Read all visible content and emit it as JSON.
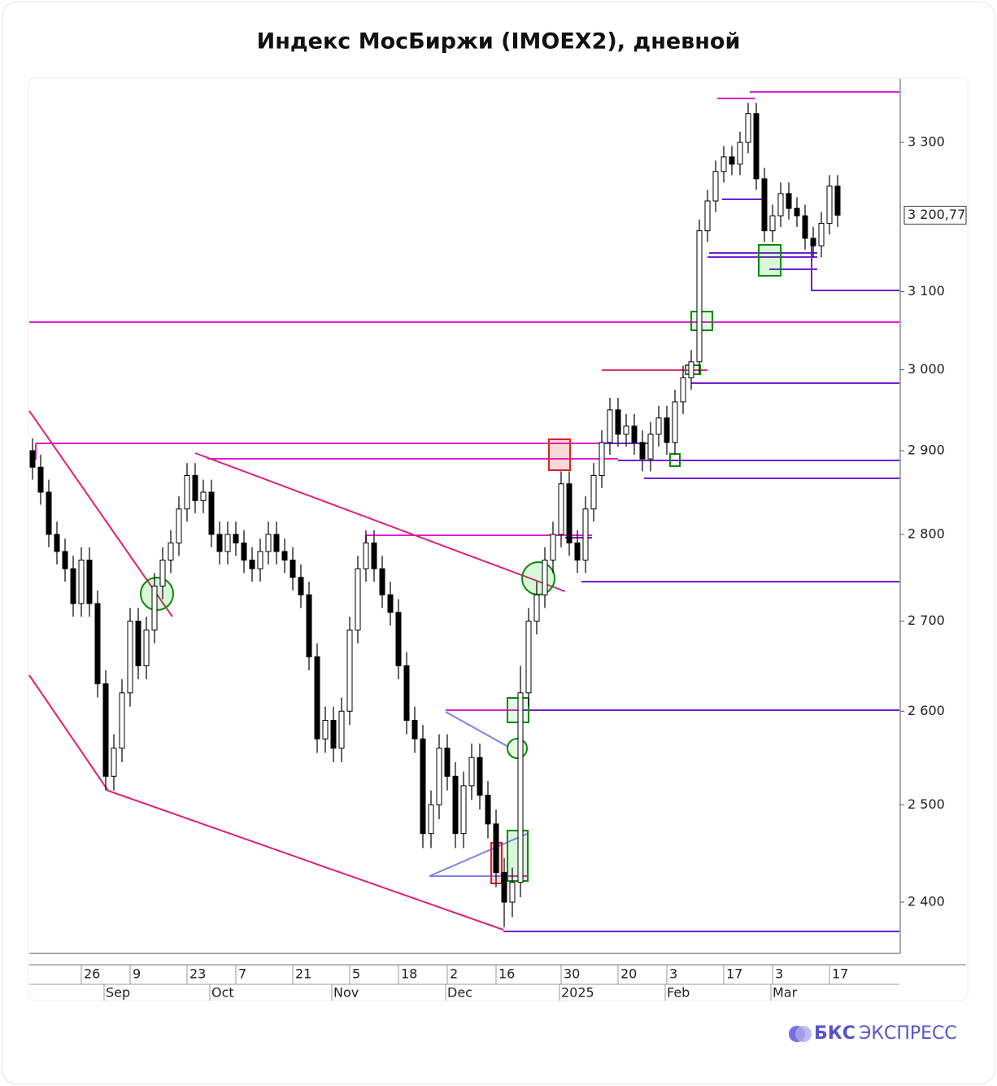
{
  "chart_data": {
    "type": "candlestick",
    "title": "Индекс МосБиржи (IMOEX2), дневной",
    "categories": [
      null,
      null,
      null,
      null,
      null,
      null,
      "26",
      null,
      null,
      null,
      null,
      null,
      "9",
      null,
      null,
      null,
      null,
      null,
      null,
      "23",
      null,
      null,
      null,
      null,
      null,
      "7",
      null,
      null,
      null,
      null,
      null,
      null,
      "21",
      null,
      null,
      null,
      null,
      null,
      null,
      "5",
      null,
      null,
      null,
      null,
      null,
      "18",
      null,
      null,
      null,
      null,
      null,
      "2",
      null,
      null,
      null,
      null,
      null,
      "16",
      null,
      null,
      null,
      null,
      null,
      null,
      null,
      "30",
      null,
      null,
      null,
      null,
      null,
      null,
      "20",
      null,
      null,
      null,
      null,
      null,
      "3",
      null,
      null,
      null,
      null,
      null,
      null,
      "17",
      null,
      null,
      null,
      null,
      null,
      "3",
      null,
      null,
      null,
      null,
      null,
      null,
      "17",
      null
    ],
    "month_categories": [
      null,
      null,
      null,
      null,
      null,
      null,
      null,
      null,
      null,
      "Sep",
      null,
      null,
      null,
      null,
      null,
      null,
      null,
      null,
      null,
      null,
      null,
      null,
      "Oct",
      null,
      null,
      null,
      null,
      null,
      null,
      null,
      null,
      null,
      null,
      null,
      null,
      null,
      null,
      "Nov",
      null,
      null,
      null,
      null,
      null,
      null,
      null,
      null,
      null,
      null,
      null,
      null,
      null,
      "Dec",
      null,
      null,
      null,
      null,
      null,
      null,
      null,
      null,
      null,
      null,
      null,
      null,
      null,
      "2025",
      null,
      null,
      null,
      null,
      null,
      null,
      null,
      null,
      null,
      null,
      null,
      null,
      "Feb",
      null,
      null,
      null,
      null,
      null,
      null,
      null,
      null,
      null,
      null,
      null,
      null,
      "Mar",
      null,
      null,
      null,
      null,
      null,
      null,
      null,
      null
    ],
    "open": [
      2900,
      2880,
      2850,
      2800,
      2780,
      2760,
      2720,
      2770,
      2720,
      2630,
      2530,
      2560,
      2620,
      2700,
      2650,
      2690,
      2740,
      2770,
      2790,
      2830,
      2870,
      2840,
      2850,
      2800,
      2780,
      2800,
      2790,
      2770,
      2760,
      2780,
      2800,
      2780,
      2770,
      2750,
      2730,
      2660,
      2570,
      2590,
      2560,
      2600,
      2690,
      2760,
      2790,
      2760,
      2730,
      2710,
      2650,
      2590,
      2570,
      2470,
      2500,
      2560,
      2530,
      2470,
      2520,
      2550,
      2510,
      2480,
      2430,
      2400,
      2420,
      2620,
      2700,
      2730,
      2770,
      2800,
      2860,
      2790,
      2770,
      2830,
      2870,
      2910,
      2950,
      2920,
      2930,
      2910,
      2890,
      2920,
      2940,
      2910,
      2960,
      2990,
      3010,
      3180,
      3220,
      3260,
      3280,
      3270,
      3300,
      3340,
      3250,
      3180,
      3200,
      3230,
      3210,
      3200,
      3170,
      3160,
      3190,
      3240
    ],
    "high": [
      2915,
      2895,
      2865,
      2815,
      2795,
      2775,
      2785,
      2785,
      2735,
      2645,
      2575,
      2635,
      2715,
      2715,
      2705,
      2755,
      2785,
      2805,
      2845,
      2885,
      2885,
      2865,
      2865,
      2815,
      2815,
      2815,
      2805,
      2785,
      2795,
      2815,
      2815,
      2795,
      2785,
      2765,
      2745,
      2675,
      2605,
      2605,
      2615,
      2705,
      2775,
      2805,
      2805,
      2775,
      2745,
      2725,
      2665,
      2605,
      2585,
      2515,
      2575,
      2575,
      2545,
      2535,
      2565,
      2565,
      2525,
      2495,
      2445,
      2435,
      2650,
      2715,
      2745,
      2785,
      2815,
      2875,
      2875,
      2805,
      2845,
      2885,
      2925,
      2965,
      2965,
      2945,
      2945,
      2925,
      2935,
      2955,
      2955,
      2975,
      3005,
      3025,
      3195,
      3235,
      3275,
      3295,
      3295,
      3315,
      3355,
      3355,
      3265,
      3215,
      3245,
      3245,
      3225,
      3215,
      3185,
      3205,
      3255,
      3255
    ],
    "low": [
      2865,
      2835,
      2785,
      2765,
      2745,
      2705,
      2705,
      2705,
      2615,
      2515,
      2515,
      2545,
      2605,
      2635,
      2635,
      2675,
      2725,
      2755,
      2775,
      2815,
      2825,
      2825,
      2785,
      2765,
      2765,
      2775,
      2755,
      2745,
      2745,
      2765,
      2765,
      2755,
      2735,
      2715,
      2645,
      2555,
      2555,
      2545,
      2545,
      2585,
      2675,
      2745,
      2745,
      2715,
      2695,
      2635,
      2575,
      2555,
      2455,
      2455,
      2485,
      2515,
      2455,
      2455,
      2505,
      2495,
      2465,
      2415,
      2375,
      2385,
      2405,
      2605,
      2685,
      2715,
      2755,
      2785,
      2775,
      2755,
      2755,
      2815,
      2855,
      2895,
      2905,
      2905,
      2895,
      2875,
      2875,
      2905,
      2895,
      2895,
      2945,
      2975,
      2995,
      3165,
      3205,
      3245,
      3255,
      3255,
      3285,
      3235,
      3165,
      3165,
      3185,
      3195,
      3185,
      3155,
      3145,
      3145,
      3175,
      3185
    ],
    "close": [
      2880,
      2850,
      2800,
      2780,
      2760,
      2720,
      2770,
      2720,
      2630,
      2530,
      2560,
      2620,
      2700,
      2650,
      2690,
      2740,
      2770,
      2790,
      2830,
      2870,
      2840,
      2850,
      2800,
      2780,
      2800,
      2790,
      2770,
      2760,
      2780,
      2800,
      2780,
      2770,
      2750,
      2730,
      2660,
      2570,
      2590,
      2560,
      2600,
      2690,
      2760,
      2790,
      2760,
      2730,
      2710,
      2650,
      2590,
      2570,
      2470,
      2500,
      2560,
      2530,
      2470,
      2520,
      2550,
      2510,
      2480,
      2430,
      2400,
      2420,
      2620,
      2700,
      2730,
      2770,
      2800,
      2860,
      2790,
      2770,
      2830,
      2870,
      2910,
      2950,
      2920,
      2930,
      2910,
      2890,
      2920,
      2940,
      2910,
      2960,
      2990,
      3010,
      3180,
      3220,
      3260,
      3280,
      3270,
      3300,
      3340,
      3250,
      3180,
      3200,
      3230,
      3210,
      3200,
      3170,
      3160,
      3190,
      3240,
      3200.77
    ],
    "last_label": "3 200,77",
    "up_color": "#ffffff",
    "down_color": "#000000",
    "log_scale": true,
    "ylim": [
      2349,
      3389
    ],
    "yticks": [
      {
        "value": 2400,
        "label": "2 400"
      },
      {
        "value": 2500,
        "label": "2 500"
      },
      {
        "value": 2600,
        "label": "2 600"
      },
      {
        "value": 2700,
        "label": "2 700"
      },
      {
        "value": 2800,
        "label": "2 800"
      },
      {
        "value": 2900,
        "label": "2 900"
      },
      {
        "value": 3000,
        "label": "3 000"
      },
      {
        "value": 3100,
        "label": "3 100"
      },
      {
        "value": 3300,
        "label": "3 300"
      }
    ]
  },
  "brand": {
    "name": "БКС",
    "suffix": "ЭКСПРЕСС"
  }
}
